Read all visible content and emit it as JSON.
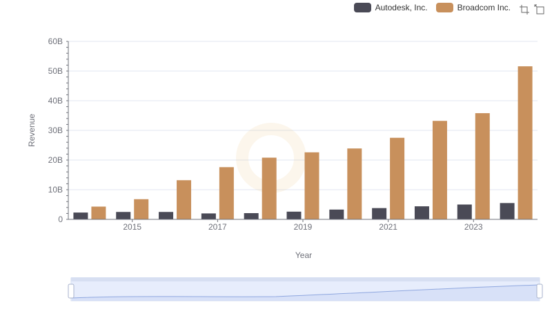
{
  "chart_data": {
    "type": "bar",
    "x": [
      2014,
      2015,
      2016,
      2017,
      2018,
      2019,
      2020,
      2021,
      2022,
      2023,
      2024
    ],
    "xticks": [
      "2015",
      "2017",
      "2019",
      "2021",
      "2023"
    ],
    "ylabel": "Revenue",
    "xlabel": "Year",
    "ylim": [
      0,
      60
    ],
    "yticks": [
      "0",
      "10B",
      "20B",
      "30B",
      "40B",
      "50B",
      "60B"
    ],
    "series": [
      {
        "name": "Autodesk, Inc.",
        "color": "#4a4a56",
        "values": [
          2.3,
          2.5,
          2.5,
          2.0,
          2.1,
          2.6,
          3.3,
          3.8,
          4.4,
          5.0,
          5.5
        ]
      },
      {
        "name": "Broadcom Inc.",
        "color": "#c8905c",
        "values": [
          4.3,
          6.8,
          13.2,
          17.6,
          20.8,
          22.6,
          23.9,
          27.5,
          33.2,
          35.8,
          51.6
        ]
      }
    ]
  },
  "legend_items": [
    "Autodesk, Inc.",
    "Broadcom Inc."
  ],
  "toolbox": {
    "zoom_icon": "zoom-icon",
    "restore_icon": "restore-icon"
  }
}
